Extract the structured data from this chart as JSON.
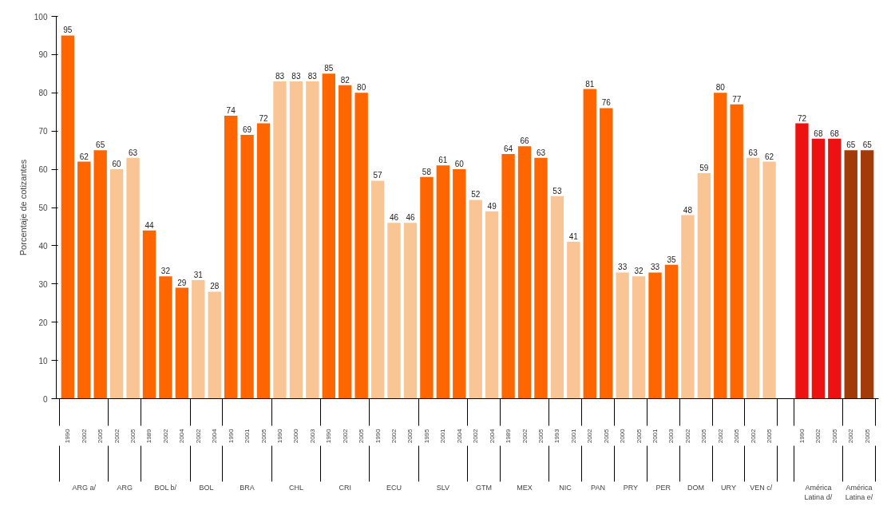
{
  "chart_data": {
    "type": "bar",
    "ylabel": "Porcentaje de cotizantes",
    "categories": [
      "1990",
      "2002",
      "2005",
      "2002",
      "2005",
      "1989",
      "2002",
      "2004",
      "2002",
      "2004",
      "1990",
      "2001",
      "2005",
      "1990",
      "2000",
      "2003",
      "1990",
      "2002",
      "2005",
      "1990",
      "2002",
      "2005",
      "1995",
      "2001",
      "2004",
      "2002",
      "2004",
      "1989",
      "2002",
      "2005",
      "1993",
      "2001",
      "2002",
      "2005",
      "2000",
      "2005",
      "2001",
      "2003",
      "2002",
      "2005",
      "2002",
      "2005",
      "2002",
      "2005",
      null,
      "1990",
      "2002",
      "2005",
      "2002",
      "2005"
    ],
    "values": [
      95,
      62,
      65,
      60,
      63,
      44,
      32,
      29,
      31,
      28,
      74,
      69,
      72,
      83,
      83,
      83,
      85,
      82,
      80,
      57,
      46,
      46,
      58,
      61,
      60,
      52,
      49,
      64,
      66,
      63,
      53,
      41,
      81,
      76,
      33,
      32,
      33,
      35,
      48,
      59,
      80,
      77,
      63,
      62,
      null,
      72,
      68,
      68,
      65,
      65
    ],
    "colors": [
      "#ff6600",
      "#ff6600",
      "#ff6600",
      "#fac595",
      "#fac595",
      "#ff6600",
      "#ff6600",
      "#ff6600",
      "#fac595",
      "#fac595",
      "#ff6600",
      "#ff6600",
      "#ff6600",
      "#fac595",
      "#fac595",
      "#fac595",
      "#ff6600",
      "#ff6600",
      "#ff6600",
      "#fac595",
      "#fac595",
      "#fac595",
      "#ff6600",
      "#ff6600",
      "#ff6600",
      "#fac595",
      "#fac595",
      "#ff6600",
      "#ff6600",
      "#ff6600",
      "#fac595",
      "#fac595",
      "#ff6600",
      "#ff6600",
      "#fac595",
      "#fac595",
      "#ff6600",
      "#ff6600",
      "#fac595",
      "#fac595",
      "#ff6600",
      "#ff6600",
      "#fac595",
      "#fac595",
      null,
      "#ee1111",
      "#ee1111",
      "#ee1111",
      "#a33a0a",
      "#a33a0a"
    ],
    "annotations": [
      "ARG a/",
      "ARG",
      "BOL b/",
      "BOL",
      "BRA",
      "CHL",
      "CRI",
      "ECU",
      "SLV",
      "GTM",
      "MEX",
      "NIC",
      "PAN",
      "PRY",
      "PER",
      "DOM",
      "URY",
      "VEN c/",
      "América Latina d/",
      "América Latina e/"
    ],
    "ylim": [
      0,
      100
    ],
    "yticks": [
      0,
      10,
      20,
      30,
      40,
      50,
      60,
      70,
      80,
      90,
      100
    ],
    "data_labels": true,
    "grid": false
  }
}
